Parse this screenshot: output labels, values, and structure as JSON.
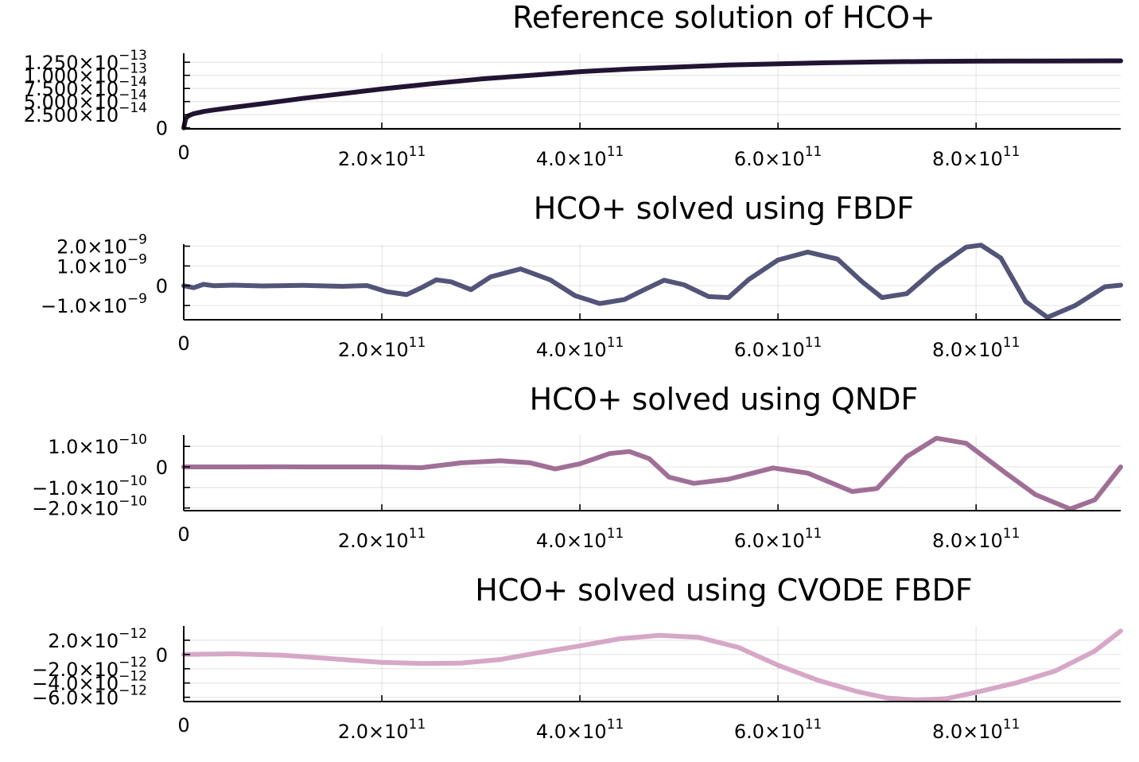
{
  "chart_data": [
    {
      "type": "line",
      "title": "Reference solution of HCO+",
      "xlabel": "",
      "ylabel": "",
      "x_ticks": [
        {
          "value": 0,
          "mant": "0",
          "exp": ""
        },
        {
          "value": 200000000000,
          "mant": "2.0×10",
          "exp": "11"
        },
        {
          "value": 400000000000,
          "mant": "4.0×10",
          "exp": "11"
        },
        {
          "value": 600000000000,
          "mant": "6.0×10",
          "exp": "11"
        },
        {
          "value": 800000000000,
          "mant": "8.0×10",
          "exp": "11"
        }
      ],
      "y_ticks": [
        {
          "value": 0,
          "mant": "0",
          "exp": ""
        },
        {
          "value": 2.5e-14,
          "mant": "2.500×10",
          "exp": "−14"
        },
        {
          "value": 5e-14,
          "mant": "5.000×10",
          "exp": "−14"
        },
        {
          "value": 7.5e-14,
          "mant": "7.500×10",
          "exp": "−14"
        },
        {
          "value": 1e-13,
          "mant": "1.000×10",
          "exp": "−13"
        },
        {
          "value": 1.25e-13,
          "mant": "1.250×10",
          "exp": "−13"
        }
      ],
      "xlim": [
        0,
        946000000000
      ],
      "ylim": [
        -2e-15,
        1.42e-13
      ],
      "grid": true,
      "legend": "none",
      "color": "#221433",
      "x": [
        0,
        2000000000.0,
        5000000000.0,
        10000000000.0,
        20000000000.0,
        30000000000.0,
        50000000000.0,
        80000000000.0,
        120000000000.0,
        160000000000.0,
        200000000000.0,
        250000000000.0,
        300000000000.0,
        350000000000.0,
        400000000000.0,
        450000000000.0,
        500000000000.0,
        550000000000.0,
        600000000000.0,
        650000000000.0,
        700000000000.0,
        750000000000.0,
        800000000000.0,
        850000000000.0,
        900000000000.0,
        946000000000.0
      ],
      "y": [
        0,
        1.8e-14,
        2.3e-14,
        2.7e-14,
        3.1e-14,
        3.4e-14,
        3.9e-14,
        4.6e-14,
        5.6e-14,
        6.5e-14,
        7.4e-14,
        8.4e-14,
        9.3e-14,
        1e-13,
        1.07e-13,
        1.12e-13,
        1.16e-13,
        1.195e-13,
        1.22e-13,
        1.24e-13,
        1.255e-13,
        1.265e-13,
        1.27e-13,
        1.273e-13,
        1.275e-13,
        1.276e-13
      ]
    },
    {
      "type": "line",
      "title": "HCO+ solved using FBDF",
      "xlabel": "",
      "ylabel": "",
      "x_ticks": [
        {
          "value": 0,
          "mant": "0",
          "exp": ""
        },
        {
          "value": 200000000000,
          "mant": "2.0×10",
          "exp": "11"
        },
        {
          "value": 400000000000,
          "mant": "4.0×10",
          "exp": "11"
        },
        {
          "value": 600000000000,
          "mant": "6.0×10",
          "exp": "11"
        },
        {
          "value": 800000000000,
          "mant": "8.0×10",
          "exp": "11"
        }
      ],
      "y_ticks": [
        {
          "value": -1e-09,
          "mant": "−1.0×10",
          "exp": "−9"
        },
        {
          "value": 0,
          "mant": "0",
          "exp": ""
        },
        {
          "value": 1e-09,
          "mant": "1.0×10",
          "exp": "−9"
        },
        {
          "value": 2e-09,
          "mant": "2.0×10",
          "exp": "−9"
        }
      ],
      "xlim": [
        0,
        946000000000
      ],
      "ylim": [
        -1.72e-09,
        2.1e-09
      ],
      "grid": true,
      "legend": "none",
      "color": "#535478",
      "x": [
        0,
        10000000000.0,
        20000000000.0,
        30000000000.0,
        50000000000.0,
        80000000000.0,
        120000000000.0,
        160000000000.0,
        185000000000.0,
        205000000000.0,
        225000000000.0,
        240000000000.0,
        255000000000.0,
        270000000000.0,
        290000000000.0,
        310000000000.0,
        340000000000.0,
        370000000000.0,
        395000000000.0,
        420000000000.0,
        445000000000.0,
        465000000000.0,
        485000000000.0,
        505000000000.0,
        530000000000.0,
        550000000000.0,
        570000000000.0,
        600000000000.0,
        630000000000.0,
        660000000000.0,
        685000000000.0,
        705000000000.0,
        730000000000.0,
        760000000000.0,
        790000000000.0,
        805000000000.0,
        825000000000.0,
        850000000000.0,
        872000000000.0,
        900000000000.0,
        930000000000.0,
        946000000000.0
      ],
      "y": [
        0,
        -1e-10,
        7e-11,
        0,
        3e-11,
        -1e-11,
        2e-11,
        -3e-11,
        1e-11,
        -3e-10,
        -4.5e-10,
        -1e-10,
        3e-10,
        2e-10,
        -2e-10,
        4.5e-10,
        8.5e-10,
        3e-10,
        -5e-10,
        -9e-10,
        -7e-10,
        -2e-10,
        2.8e-10,
        5e-11,
        -5.5e-10,
        -6e-10,
        3e-10,
        1.3e-09,
        1.7e-09,
        1.35e-09,
        2e-10,
        -6e-10,
        -4e-10,
        9e-10,
        1.95e-09,
        2.05e-09,
        1.4e-09,
        -8e-10,
        -1.6e-09,
        -1e-09,
        -5e-11,
        3e-11
      ]
    },
    {
      "type": "line",
      "title": "HCO+ solved using QNDF",
      "xlabel": "",
      "ylabel": "",
      "x_ticks": [
        {
          "value": 0,
          "mant": "0",
          "exp": ""
        },
        {
          "value": 200000000000,
          "mant": "2.0×10",
          "exp": "11"
        },
        {
          "value": 400000000000,
          "mant": "4.0×10",
          "exp": "11"
        },
        {
          "value": 600000000000,
          "mant": "6.0×10",
          "exp": "11"
        },
        {
          "value": 800000000000,
          "mant": "8.0×10",
          "exp": "11"
        }
      ],
      "y_ticks": [
        {
          "value": -2e-10,
          "mant": "−2.0×10",
          "exp": "−10"
        },
        {
          "value": -1e-10,
          "mant": "−1.0×10",
          "exp": "−10"
        },
        {
          "value": 0,
          "mant": "0",
          "exp": ""
        },
        {
          "value": 1e-10,
          "mant": "1.0×10",
          "exp": "−10"
        }
      ],
      "xlim": [
        0,
        946000000000
      ],
      "ylim": [
        -2.13e-10,
        1.55e-10
      ],
      "grid": true,
      "legend": "none",
      "color": "#a06f96",
      "x": [
        0,
        50000000000.0,
        100000000000.0,
        150000000000.0,
        200000000000.0,
        240000000000.0,
        280000000000.0,
        320000000000.0,
        350000000000.0,
        375000000000.0,
        400000000000.0,
        430000000000.0,
        450000000000.0,
        470000000000.0,
        490000000000.0,
        515000000000.0,
        550000000000.0,
        595000000000.0,
        630000000000.0,
        675000000000.0,
        700000000000.0,
        730000000000.0,
        760000000000.0,
        790000000000.0,
        830000000000.0,
        860000000000.0,
        895000000000.0,
        920000000000.0,
        946000000000.0
      ],
      "y": [
        0,
        0,
        5e-13,
        0,
        0,
        -4e-12,
        2e-11,
        3e-11,
        2e-11,
        -1e-11,
        1.5e-11,
        6.5e-11,
        7.5e-11,
        4e-11,
        -5e-11,
        -8e-11,
        -6e-11,
        -5e-12,
        -3e-11,
        -1.2e-10,
        -1.05e-10,
        5e-11,
        1.4e-10,
        1.15e-10,
        -3e-11,
        -1.35e-10,
        -2.05e-10,
        -1.6e-10,
        0
      ]
    },
    {
      "type": "line",
      "title": "HCO+ solved using CVODE FBDF",
      "xlabel": "",
      "ylabel": "",
      "x_ticks": [
        {
          "value": 0,
          "mant": "0",
          "exp": ""
        },
        {
          "value": 200000000000,
          "mant": "2.0×10",
          "exp": "11"
        },
        {
          "value": 400000000000,
          "mant": "4.0×10",
          "exp": "11"
        },
        {
          "value": 600000000000,
          "mant": "6.0×10",
          "exp": "11"
        },
        {
          "value": 800000000000,
          "mant": "8.0×10",
          "exp": "11"
        }
      ],
      "y_ticks": [
        {
          "value": -6e-12,
          "mant": "−6.0×10",
          "exp": "−12"
        },
        {
          "value": -4e-12,
          "mant": "−4.0×10",
          "exp": "−12"
        },
        {
          "value": -2e-12,
          "mant": "−2.0×10",
          "exp": "−12"
        },
        {
          "value": 0,
          "mant": "0",
          "exp": ""
        },
        {
          "value": 2e-12,
          "mant": "2.0×10",
          "exp": "−12"
        }
      ],
      "xlim": [
        0,
        946000000000
      ],
      "ylim": [
        -6.6e-12,
        4e-12
      ],
      "grid": true,
      "legend": "none",
      "color": "#d6a7c6",
      "x": [
        0,
        50000000000.0,
        100000000000.0,
        150000000000.0,
        200000000000.0,
        240000000000.0,
        280000000000.0,
        320000000000.0,
        360000000000.0,
        400000000000.0,
        440000000000.0,
        480000000000.0,
        520000000000.0,
        560000000000.0,
        600000000000.0,
        640000000000.0,
        680000000000.0,
        710000000000.0,
        740000000000.0,
        770000000000.0,
        800000000000.0,
        840000000000.0,
        880000000000.0,
        920000000000.0,
        946000000000.0
      ],
      "y": [
        0,
        1e-13,
        -1e-13,
        -6e-13,
        -1.1e-12,
        -1.25e-12,
        -1.2e-12,
        -7e-13,
        3e-13,
        1.2e-12,
        2.2e-12,
        2.7e-12,
        2.4e-12,
        1e-12,
        -1.5e-12,
        -3.6e-12,
        -5.2e-12,
        -6.1e-12,
        -6.4e-12,
        -6.2e-12,
        -5.3e-12,
        -4e-12,
        -2.3e-12,
        5e-13,
        3.3e-12
      ]
    }
  ]
}
